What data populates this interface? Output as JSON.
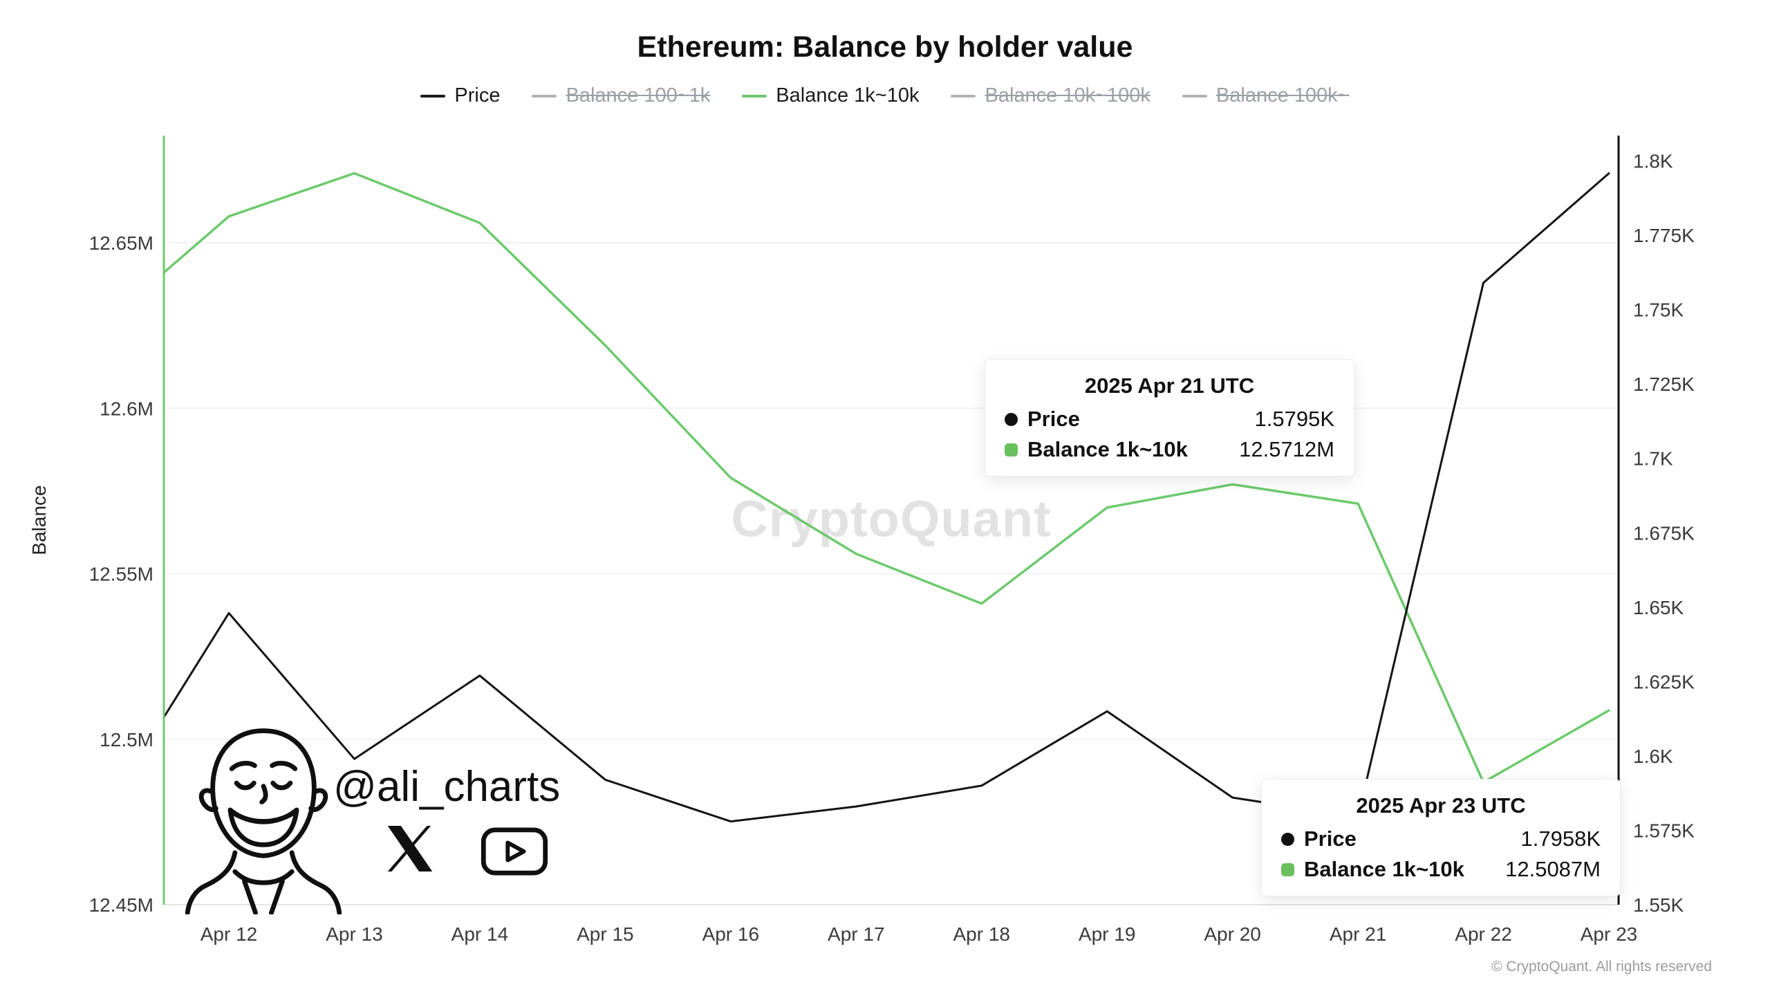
{
  "title": "Ethereum: Balance by holder value",
  "legend": {
    "items": [
      {
        "label": "Price",
        "color": "#1a1a1a",
        "active": true
      },
      {
        "label": "Balance 100~1k",
        "color": "#b0b4b9",
        "active": false
      },
      {
        "label": "Balance 1k~10k",
        "color": "#6dc96d",
        "active": true
      },
      {
        "label": "Balance 10k~100k",
        "color": "#b0b4b9",
        "active": false
      },
      {
        "label": "Balance 100k~",
        "color": "#b0b4b9",
        "active": false
      }
    ]
  },
  "chart_data": {
    "type": "line",
    "title": "Ethereum: Balance by holder value",
    "categories": [
      "Apr 12",
      "Apr 13",
      "Apr 14",
      "Apr 15",
      "Apr 16",
      "Apr 17",
      "Apr 18",
      "Apr 19",
      "Apr 20",
      "Apr 21",
      "Apr 22",
      "Apr 23"
    ],
    "series": [
      {
        "name": "Price",
        "axis": "right",
        "color": "#141414",
        "edge_value": 1.613,
        "values": [
          1.648,
          1.599,
          1.627,
          1.592,
          1.578,
          1.583,
          1.59,
          1.615,
          1.586,
          1.5795,
          1.759,
          1.7958
        ]
      },
      {
        "name": "Balance 1k~10k",
        "axis": "left",
        "color": "#6dc96d",
        "edge_value": 12.641,
        "values": [
          12.658,
          12.671,
          12.656,
          12.619,
          12.579,
          12.556,
          12.541,
          12.57,
          12.577,
          12.5712,
          12.487,
          12.5087
        ]
      }
    ],
    "left_axis": {
      "label": "Balance",
      "ticks": [
        "12.45M",
        "12.5M",
        "12.55M",
        "12.6M",
        "12.65M"
      ],
      "tick_values": [
        12.45,
        12.5,
        12.55,
        12.6,
        12.65
      ],
      "domain": [
        12.45,
        12.6824
      ]
    },
    "right_axis": {
      "ticks": [
        "1.55K",
        "1.575K",
        "1.6K",
        "1.625K",
        "1.65K",
        "1.675K",
        "1.7K",
        "1.725K",
        "1.75K",
        "1.775K",
        "1.8K"
      ],
      "tick_values": [
        1.55,
        1.575,
        1.6,
        1.625,
        1.65,
        1.675,
        1.7,
        1.725,
        1.75,
        1.775,
        1.8
      ],
      "domain": [
        1.55,
        1.8085
      ]
    },
    "grid": "horizontal-only",
    "legend_position": "top-center"
  },
  "tooltips": [
    {
      "title": "2025 Apr 21 UTC",
      "rows": [
        {
          "label": "Price",
          "value": "1.5795K",
          "marker_shape": "circle",
          "marker_color": "#111111"
        },
        {
          "label": "Balance 1k~10k",
          "value": "12.5712M",
          "marker_shape": "square",
          "marker_color": "#6abf5e"
        }
      ]
    },
    {
      "title": "2025 Apr 23 UTC",
      "rows": [
        {
          "label": "Price",
          "value": "1.7958K",
          "marker_shape": "circle",
          "marker_color": "#111111"
        },
        {
          "label": "Balance 1k~10k",
          "value": "12.5087M",
          "marker_shape": "square",
          "marker_color": "#6abf5e"
        }
      ]
    }
  ],
  "watermark": "CryptoQuant",
  "branding": {
    "handle": "@ali_charts",
    "icons": [
      "ali-avatar-sketch",
      "x-logo-icon",
      "youtube-icon"
    ]
  },
  "footer": {
    "copyright": "© CryptoQuant. All rights reserved"
  }
}
